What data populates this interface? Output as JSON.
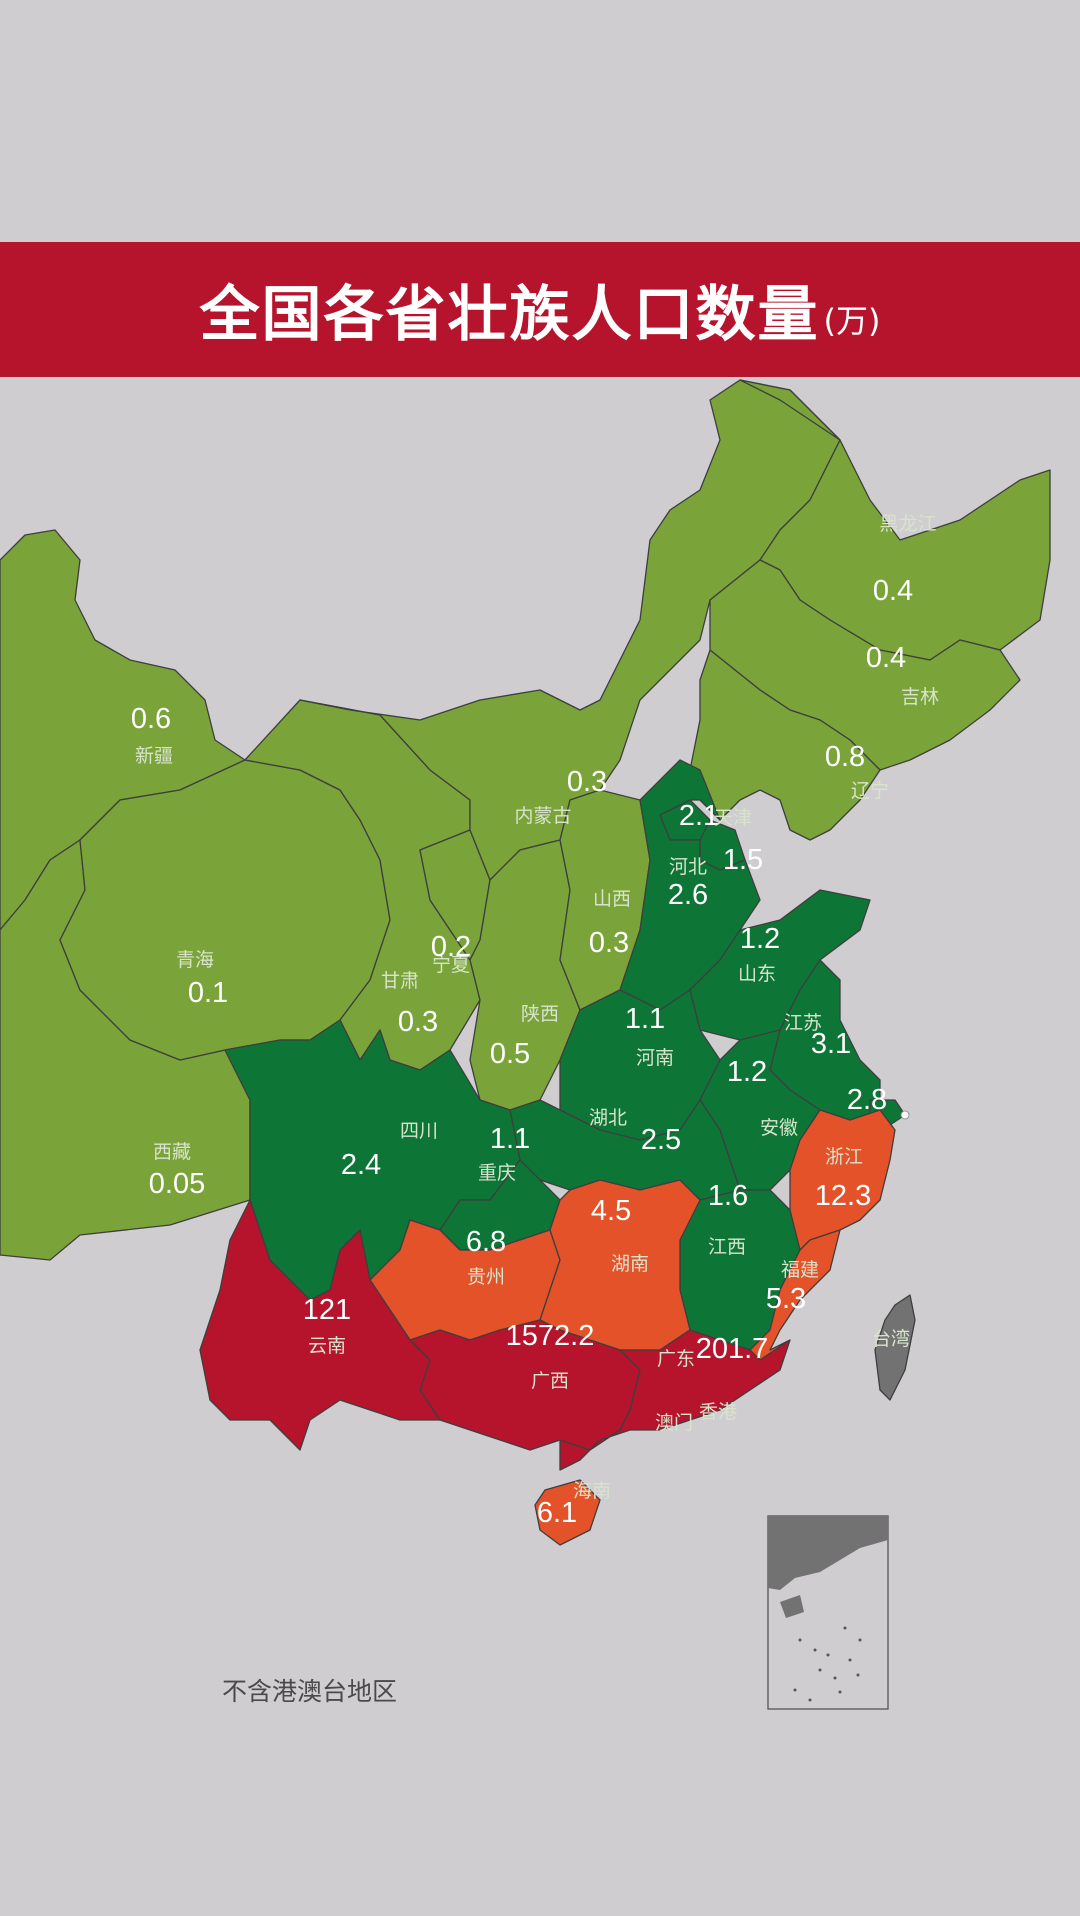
{
  "title": "全国各省壮族人口数量",
  "unit": "(万)",
  "footnote": "不含港澳台地区",
  "colors": {
    "background": "#cfcdcf",
    "title_bar": "#b5142c",
    "tier_lt_1": "#7aa43a",
    "tier_1_to_4": "#0d7636",
    "tier_4_to_15": "#e4522a",
    "tier_gt_100": "#b5142c",
    "no_data": "#727272"
  },
  "provinces": [
    {
      "key": "heilongjiang",
      "name": "黑龙江",
      "value": "0.4",
      "tier": "tier_lt_1"
    },
    {
      "key": "jilin",
      "name": "吉林",
      "value": "0.4",
      "tier": "tier_lt_1"
    },
    {
      "key": "liaoning",
      "name": "辽宁",
      "value": "0.8",
      "tier": "tier_lt_1"
    },
    {
      "key": "xinjiang",
      "name": "新疆",
      "value": "0.6",
      "tier": "tier_lt_1"
    },
    {
      "key": "neimenggu",
      "name": "内蒙古",
      "value": "0.3",
      "tier": "tier_lt_1"
    },
    {
      "key": "beijing",
      "name": "",
      "value": "2.1",
      "tier": "tier_1_to_4"
    },
    {
      "key": "tianjin",
      "name": "天津",
      "value": "1.5",
      "tier": "tier_1_to_4"
    },
    {
      "key": "hebei",
      "name": "河北",
      "value": "2.6",
      "tier": "tier_1_to_4"
    },
    {
      "key": "shanxi",
      "name": "山西",
      "value": "0.3",
      "tier": "tier_lt_1"
    },
    {
      "key": "shandong",
      "name": "山东",
      "value": "1.2",
      "tier": "tier_1_to_4"
    },
    {
      "key": "qinghai",
      "name": "青海",
      "value": "0.1",
      "tier": "tier_lt_1"
    },
    {
      "key": "ningxia",
      "name": "宁夏",
      "value": "0.2",
      "tier": "tier_lt_1"
    },
    {
      "key": "gansu",
      "name": "甘肃",
      "value": "0.3",
      "tier": "tier_lt_1"
    },
    {
      "key": "shaanxi",
      "name": "陕西",
      "value": "0.5",
      "tier": "tier_lt_1"
    },
    {
      "key": "henan",
      "name": "河南",
      "value": "1.1",
      "tier": "tier_1_to_4"
    },
    {
      "key": "jiangsu",
      "name": "江苏",
      "value": "3.1",
      "tier": "tier_1_to_4"
    },
    {
      "key": "anhui",
      "name": "安徽",
      "value": "1.2",
      "tier": "tier_1_to_4"
    },
    {
      "key": "shanghai",
      "name": "",
      "value": "2.8",
      "tier": "tier_1_to_4"
    },
    {
      "key": "xizang",
      "name": "西藏",
      "value": "0.05",
      "tier": "tier_lt_1"
    },
    {
      "key": "sichuan",
      "name": "四川",
      "value": "2.4",
      "tier": "tier_1_to_4"
    },
    {
      "key": "chongqing",
      "name": "重庆",
      "value": "1.1",
      "tier": "tier_1_to_4"
    },
    {
      "key": "hubei",
      "name": "湖北",
      "value": "2.5",
      "tier": "tier_1_to_4"
    },
    {
      "key": "zhejiang",
      "name": "浙江",
      "value": "12.3",
      "tier": "tier_4_to_15"
    },
    {
      "key": "jiangxi",
      "name": "江西",
      "value": "1.6",
      "tier": "tier_1_to_4"
    },
    {
      "key": "guizhou",
      "name": "贵州",
      "value": "6.8",
      "tier": "tier_4_to_15"
    },
    {
      "key": "hunan",
      "name": "湖南",
      "value": "4.5",
      "tier": "tier_4_to_15"
    },
    {
      "key": "fujian",
      "name": "福建",
      "value": "5.3",
      "tier": "tier_4_to_15"
    },
    {
      "key": "yunnan",
      "name": "云南",
      "value": "121",
      "tier": "tier_gt_100"
    },
    {
      "key": "guangxi",
      "name": "广西",
      "value": "1572.2",
      "tier": "tier_gt_100"
    },
    {
      "key": "guangdong",
      "name": "广东",
      "value": "201.7",
      "tier": "tier_gt_100"
    },
    {
      "key": "hainan",
      "name": "海南",
      "value": "6.1",
      "tier": "tier_4_to_15"
    },
    {
      "key": "taiwan",
      "name": "台湾",
      "value": "",
      "tier": "no_data"
    }
  ],
  "extra_labels": [
    {
      "key": "hongkong",
      "name": "香港"
    },
    {
      "key": "macau",
      "name": "澳门"
    }
  ]
}
